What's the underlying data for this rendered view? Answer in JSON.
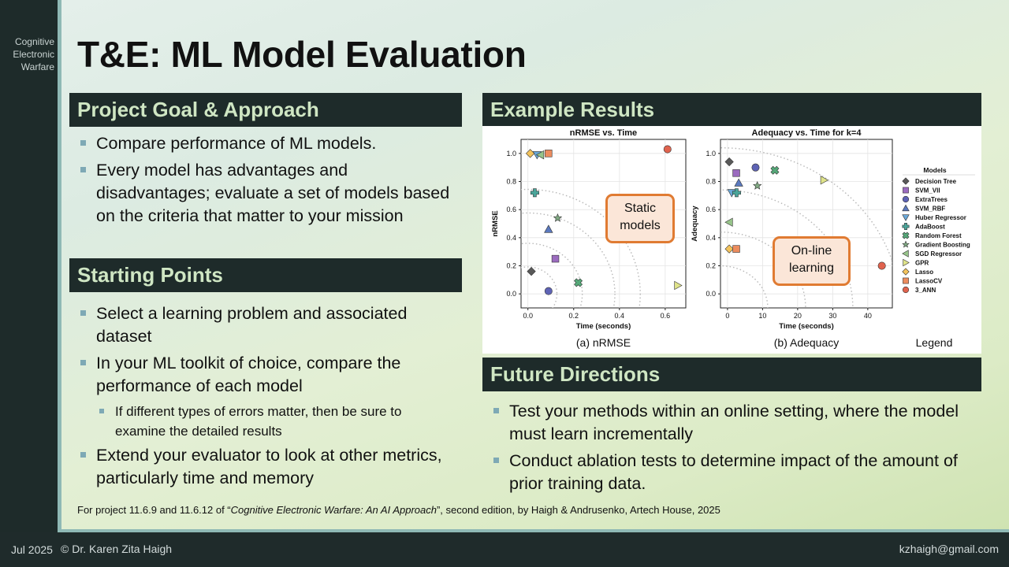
{
  "sidebar": {
    "tagline_lines": [
      "Cognitive",
      "Electronic",
      "Warfare"
    ]
  },
  "title": "T&E: ML Model Evaluation",
  "goal": {
    "heading": "Project Goal & Approach",
    "bullets": [
      "Compare performance of ML models.",
      "Every model has advantages and disadvantages; evaluate a set of models based on the criteria that matter to your mission"
    ]
  },
  "starting": {
    "heading": "Starting Points",
    "bullets": [
      "Select a learning problem and associated dataset",
      "In your ML toolkit of choice, compare the performance of each model",
      "If different types of errors matter, then be sure to examine the detailed results",
      "Extend your evaluator to look at other metrics, particularly time and memory"
    ]
  },
  "results": {
    "heading": "Example Results"
  },
  "future": {
    "heading": "Future Directions",
    "bullets": [
      "Test your methods within an online setting, where the model must learn incrementally",
      "Conduct ablation tests to determine impact of the amount of prior training data."
    ]
  },
  "citation": {
    "pre": "For project 11.6.9 and 11.6.12 of “",
    "book": "Cognitive Electronic Warfare: An AI Approach",
    "post": "”, second edition, by Haigh & Andrusenko, Artech House, 2025"
  },
  "footer": {
    "date": "Jul 2025",
    "author": "© Dr. Karen Zita Haigh",
    "email": "kzhaigh@gmail.com"
  },
  "callouts": {
    "static": [
      "Static",
      "models"
    ],
    "online": [
      "On-line",
      "learning"
    ]
  },
  "chart_data": [
    {
      "type": "scatter",
      "title": "nRMSE vs. Time",
      "xlabel": "Time (seconds)",
      "ylabel": "nRMSE",
      "caption": "(a) nRMSE",
      "xlim": [
        -0.03,
        0.69
      ],
      "ylim": [
        -0.1,
        1.1
      ],
      "xticks": [
        "0.0",
        "0.2",
        "0.4",
        "0.6"
      ],
      "yticks": [
        "0.0",
        "0.2",
        "0.4",
        "0.6",
        "0.8",
        "1.0"
      ],
      "grid": true,
      "points": [
        {
          "model": "Decision Tree",
          "x": 0.015,
          "y": 0.16
        },
        {
          "model": "SVM_VII",
          "x": 0.12,
          "y": 0.25
        },
        {
          "model": "ExtraTrees",
          "x": 0.09,
          "y": 0.02
        },
        {
          "model": "SVM_RBF",
          "x": 0.09,
          "y": 0.46
        },
        {
          "model": "Huber Regressor",
          "x": 0.04,
          "y": 0.99
        },
        {
          "model": "AdaBoost",
          "x": 0.03,
          "y": 0.72
        },
        {
          "model": "Random Forest",
          "x": 0.22,
          "y": 0.08
        },
        {
          "model": "Gradient Boosting",
          "x": 0.13,
          "y": 0.54
        },
        {
          "model": "SGD Regressor",
          "x": 0.055,
          "y": 0.99
        },
        {
          "model": "GPR",
          "x": 0.655,
          "y": 0.06
        },
        {
          "model": "Lasso",
          "x": 0.01,
          "y": 1.0
        },
        {
          "model": "LassoCV",
          "x": 0.09,
          "y": 1.0
        },
        {
          "model": "3_ANN",
          "x": 0.61,
          "y": 1.03
        }
      ]
    },
    {
      "type": "scatter",
      "title": "Adequacy vs. Time for k=4",
      "xlabel": "Time (seconds)",
      "ylabel": "Adequacy",
      "caption": "(b) Adequacy",
      "xlim": [
        -2,
        47
      ],
      "ylim": [
        -0.1,
        1.1
      ],
      "xticks": [
        "0",
        "10",
        "20",
        "30",
        "40"
      ],
      "yticks": [
        "0.0",
        "0.2",
        "0.4",
        "0.6",
        "0.8",
        "1.0"
      ],
      "grid": true,
      "points": [
        {
          "model": "Decision Tree",
          "x": 0.5,
          "y": 0.94
        },
        {
          "model": "SVM_VII",
          "x": 2.5,
          "y": 0.86
        },
        {
          "model": "ExtraTrees",
          "x": 8,
          "y": 0.9
        },
        {
          "model": "SVM_RBF",
          "x": 3.2,
          "y": 0.79
        },
        {
          "model": "Huber Regressor",
          "x": 1.2,
          "y": 0.72
        },
        {
          "model": "AdaBoost",
          "x": 2.6,
          "y": 0.72
        },
        {
          "model": "Random Forest",
          "x": 13.5,
          "y": 0.88
        },
        {
          "model": "Gradient Boosting",
          "x": 8.5,
          "y": 0.77
        },
        {
          "model": "SGD Regressor",
          "x": 0.5,
          "y": 0.51
        },
        {
          "model": "GPR",
          "x": 27.5,
          "y": 0.81
        },
        {
          "model": "Lasso",
          "x": 0.5,
          "y": 0.32
        },
        {
          "model": "LassoCV",
          "x": 2.5,
          "y": 0.32
        },
        {
          "model": "3_ANN",
          "x": 44,
          "y": 0.2
        }
      ]
    }
  ],
  "legend": {
    "title": "Models",
    "caption": "Legend",
    "items": [
      {
        "label": "Decision Tree",
        "marker": "diamond",
        "color": "#595959"
      },
      {
        "label": "SVM_VII",
        "marker": "square",
        "color": "#9b6bbf"
      },
      {
        "label": "ExtraTrees",
        "marker": "circle",
        "color": "#5e63b5"
      },
      {
        "label": "SVM_RBF",
        "marker": "triangle-up",
        "color": "#5b79bf"
      },
      {
        "label": "Huber Regressor",
        "marker": "triangle-down",
        "color": "#6aa8d8"
      },
      {
        "label": "AdaBoost",
        "marker": "plus",
        "color": "#4aa59a"
      },
      {
        "label": "Random Forest",
        "marker": "x",
        "color": "#55a878"
      },
      {
        "label": "Gradient Boosting",
        "marker": "star",
        "color": "#7fa882"
      },
      {
        "label": "SGD Regressor",
        "marker": "triangle-left",
        "color": "#97c48a"
      },
      {
        "label": "GPR",
        "marker": "triangle-right",
        "color": "#dfe38a"
      },
      {
        "label": "Lasso",
        "marker": "diamond",
        "color": "#f3c35c"
      },
      {
        "label": "LassoCV",
        "marker": "square",
        "color": "#ec8c5e"
      },
      {
        "label": "3_ANN",
        "marker": "circle",
        "color": "#e0634e"
      }
    ]
  }
}
